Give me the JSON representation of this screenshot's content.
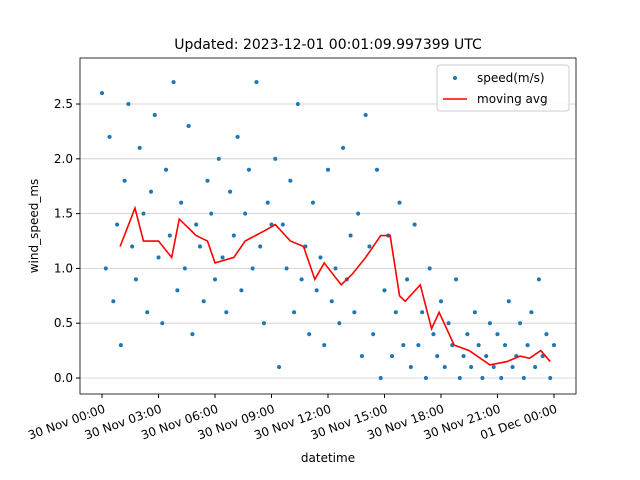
{
  "chart_data": {
    "type": "scatter",
    "title": "Updated: 2023-12-01 00:01:09.997399 UTC",
    "x_label": "datetime",
    "y_label": "wind_speed_ms",
    "xlim": [
      -1.17,
      25.17
    ],
    "ylim": [
      -0.146,
      2.92
    ],
    "xticks": [
      {
        "value": 0,
        "label": "30 Nov 00:00"
      },
      {
        "value": 3,
        "label": "30 Nov 03:00"
      },
      {
        "value": 6,
        "label": "30 Nov 06:00"
      },
      {
        "value": 9,
        "label": "30 Nov 09:00"
      },
      {
        "value": 12,
        "label": "30 Nov 12:00"
      },
      {
        "value": 15,
        "label": "30 Nov 15:00"
      },
      {
        "value": 18,
        "label": "30 Nov 18:00"
      },
      {
        "value": 21,
        "label": "30 Nov 21:00"
      },
      {
        "value": 24,
        "label": "01 Dec 00:00"
      }
    ],
    "yticks": [
      {
        "value": 0,
        "label": "0.0"
      },
      0.5,
      {
        "value": 1,
        "label": "1.0"
      },
      1.5,
      {
        "value": 2,
        "label": "2.0"
      },
      2.5
    ],
    "grid": "y",
    "legend": "upper right",
    "series": [
      {
        "name": "speed(m/s)",
        "type": "scatter",
        "color": "#1f77b4",
        "x": [
          0,
          0.2,
          0.4,
          0.6,
          0.8,
          1,
          1.2,
          1.4,
          1.6,
          1.8,
          2,
          2.2,
          2.4,
          2.6,
          2.8,
          3,
          3.2,
          3.4,
          3.6,
          3.8,
          4,
          4.2,
          4.4,
          4.6,
          4.8,
          5,
          5.2,
          5.4,
          5.6,
          5.8,
          6,
          6.2,
          6.4,
          6.6,
          6.8,
          7,
          7.2,
          7.4,
          7.6,
          7.8,
          8,
          8.2,
          8.4,
          8.6,
          8.8,
          9,
          9.2,
          9.4,
          9.6,
          9.8,
          10,
          10.2,
          10.4,
          10.6,
          10.8,
          11,
          11.2,
          11.4,
          11.6,
          11.8,
          12,
          12.2,
          12.4,
          12.6,
          12.8,
          13,
          13.2,
          13.4,
          13.6,
          13.8,
          14,
          14.2,
          14.4,
          14.6,
          14.8,
          15,
          15.2,
          15.4,
          15.6,
          15.8,
          16,
          16.2,
          16.4,
          16.6,
          16.8,
          17,
          17.2,
          17.4,
          17.6,
          17.8,
          18,
          18.2,
          18.4,
          18.6,
          18.8,
          19,
          19.2,
          19.4,
          19.6,
          19.8,
          20,
          20.2,
          20.4,
          20.6,
          20.8,
          21,
          21.2,
          21.4,
          21.6,
          21.8,
          22,
          22.2,
          22.4,
          22.6,
          22.8,
          23,
          23.2,
          23.4,
          23.6,
          23.8,
          24
        ],
        "values": [
          2.6,
          1.0,
          2.2,
          0.7,
          1.4,
          0.3,
          1.8,
          2.5,
          1.2,
          0.9,
          2.1,
          1.5,
          0.6,
          1.7,
          2.4,
          1.1,
          0.5,
          1.9,
          1.3,
          2.7,
          0.8,
          1.6,
          1.0,
          2.3,
          0.4,
          1.4,
          1.2,
          0.7,
          1.8,
          1.5,
          0.9,
          2.0,
          1.1,
          0.6,
          1.7,
          1.3,
          2.2,
          0.8,
          1.5,
          1.9,
          1.0,
          2.7,
          1.2,
          0.5,
          1.6,
          1.4,
          2.0,
          0.1,
          1.4,
          1.0,
          1.8,
          0.6,
          2.5,
          0.9,
          1.2,
          0.4,
          1.6,
          0.8,
          1.1,
          0.3,
          1.9,
          0.7,
          1.0,
          0.5,
          2.1,
          0.9,
          1.3,
          0.6,
          1.5,
          0.2,
          2.4,
          1.2,
          0.4,
          1.9,
          0.0,
          0.8,
          1.3,
          0.2,
          0.6,
          1.6,
          0.3,
          0.9,
          0.1,
          1.4,
          0.3,
          0.6,
          0.0,
          1.0,
          0.4,
          0.2,
          0.7,
          0.1,
          0.5,
          0.3,
          0.9,
          0.0,
          0.2,
          0.4,
          0.1,
          0.6,
          0.3,
          0.0,
          0.2,
          0.5,
          0.1,
          0.4,
          0.0,
          0.3,
          0.7,
          0.1,
          0.2,
          0.5,
          0.0,
          0.3,
          0.6,
          0.1,
          0.9,
          0.2,
          0.4,
          0.0,
          0.3
        ]
      },
      {
        "name": "moving avg",
        "type": "line",
        "color": "#ff0000",
        "x": [
          0.96,
          1.75,
          2.2,
          3.0,
          3.7,
          4.1,
          5.0,
          5.6,
          6.0,
          7.0,
          7.6,
          8.7,
          9.2,
          10.0,
          10.7,
          11.3,
          11.8,
          12.7,
          13.3,
          14.0,
          14.8,
          15.3,
          15.8,
          16.1,
          16.9,
          17.5,
          17.9,
          18.7,
          19.5,
          20.6,
          21.5,
          22.2,
          22.7,
          23.3,
          23.8
        ],
        "values": [
          1.2,
          1.55,
          1.25,
          1.25,
          1.1,
          1.45,
          1.3,
          1.25,
          1.05,
          1.1,
          1.25,
          1.35,
          1.4,
          1.25,
          1.2,
          0.9,
          1.05,
          0.85,
          0.95,
          1.1,
          1.3,
          1.3,
          0.75,
          0.7,
          0.85,
          0.45,
          0.6,
          0.3,
          0.25,
          0.12,
          0.15,
          0.2,
          0.18,
          0.25,
          0.15
        ]
      }
    ]
  }
}
